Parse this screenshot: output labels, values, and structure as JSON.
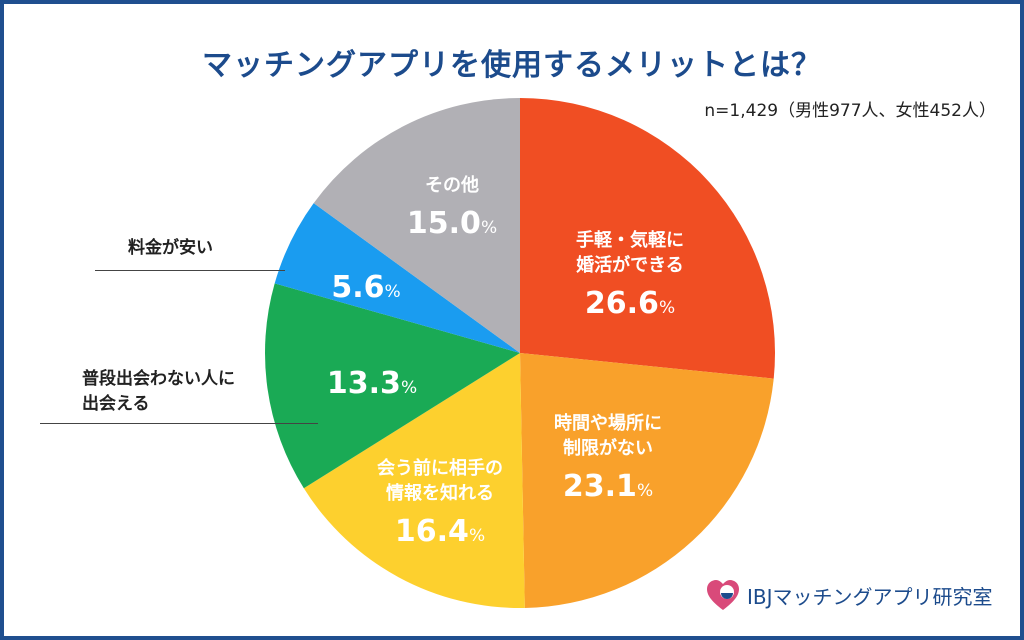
{
  "title": "マッチングアプリを使用するメリットとは？",
  "sample": "n=1,429（男性977人、女性452人）",
  "percent_sign": "%",
  "logo": {
    "text": "IBJマッチングアプリ研究室",
    "icon": "heart-flask-icon"
  },
  "chart_data": {
    "type": "pie",
    "start": "12 o'clock",
    "direction": "clockwise",
    "slices": [
      {
        "label_lines": [
          "手軽・気軽に",
          "婚活ができる"
        ],
        "value": 26.6,
        "value_text": "26.6",
        "color": "#f04e23"
      },
      {
        "label_lines": [
          "時間や場所に",
          "制限がない"
        ],
        "value": 23.1,
        "value_text": "23.1",
        "color": "#f9a12b"
      },
      {
        "label_lines": [
          "会う前に相手の",
          "情報を知れる"
        ],
        "value": 16.4,
        "value_text": "16.4",
        "color": "#fdd02e"
      },
      {
        "label_lines": [
          "普段出会わない人に",
          "出会える"
        ],
        "value": 13.3,
        "value_text": "13.3",
        "color": "#1aaa55"
      },
      {
        "label_lines": [
          "料金が安い"
        ],
        "value": 5.6,
        "value_text": "5.6",
        "color": "#1a9cf0"
      },
      {
        "label_lines": [
          "その他"
        ],
        "value": 15.0,
        "value_text": "15.0",
        "color": "#b1b0b5"
      }
    ]
  }
}
